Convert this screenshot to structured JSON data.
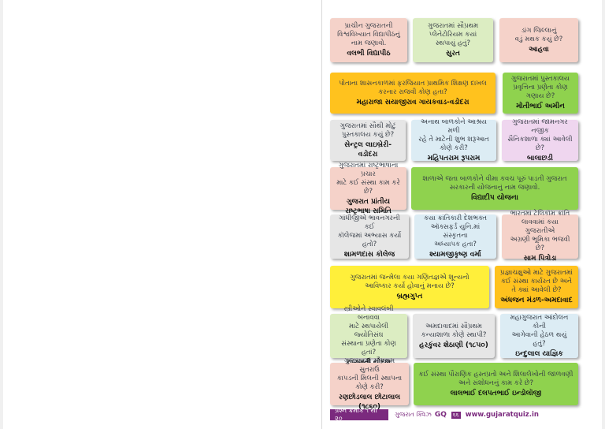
{
  "cards": [
    {
      "id": "r1c1",
      "question": "પ્રાચીન ગુજરાતની\nવિશ્વવિખ્યાત વિદ્યાપીઠનું\nનામ જણાવો.",
      "answer": "વલભી વિદ્યાપીઠ"
    },
    {
      "id": "r1c2",
      "question": "ગુજરાતમાં સૌપ્રથમ\nપ્લેનેટોરિયમ કયાં\nસ્થપાયું હતું?",
      "answer": "સુરત"
    },
    {
      "id": "r1c3",
      "question": "ડાંગ જિલ્લાનું\nવડું મથક કયું છે?",
      "answer": "આહવા"
    },
    {
      "id": "r2c1",
      "question": "પોતાના શાસનકાળમાં ફરજિયાત પ્રાથમિક શિક્ષણ દાખલ\nકરનાર રાજવી કોણ હતા?",
      "answer": "મહારાજા સયાજીરાવ ગાયકવાડ-વડોદરા"
    },
    {
      "id": "r2c2",
      "question": "ગુજરાતમાં પુસ્તકાલય\nપ્રવૃત્તિના પ્રણેતા કોણ\nગણાય છે?",
      "answer": "મોતીભાઈ અમીન"
    },
    {
      "id": "r3c1",
      "question": "ગુજરાતમાં સૌથી મોટું\nપુસ્તકાલય કયું છે?",
      "answer": "સેન્ટ્રલ લાઇબ્રેરી-વડોદરા"
    },
    {
      "id": "r3c2",
      "question": "અનાથ બાળકોને આશ્રય મળી\nરહે તે માટેની શુભ શરૂઆત\nકોણે કરી?",
      "answer": "મહિપતરામ રૂપરામ"
    },
    {
      "id": "r3c3",
      "question": "ગુજરાતમાં જામનગર નજીક\nસૈનિકશાળા ક્યાં આવેલી છે?",
      "answer": "બાલાછડી"
    },
    {
      "id": "r4c1",
      "question": "ગુજરાતમાં રાષ્ટ્રભાષાના પ્રચાર\nમાટે કઈ સંસ્થા કામ કરે છે?",
      "answer": "ગુજરાત પ્રાંતીય\nરાષ્ટ્રભાષા સમિતિ"
    },
    {
      "id": "r4c2",
      "question": "શાળાએ જતા બાળકોને વીમા કવચ પૂરું પાડતી ગુજરાત\nસરકારની યોજનાનું નામ જણાવો.",
      "answer": "વિદ્યાદીપ યોજના"
    },
    {
      "id": "r5c1",
      "question": "ગાંધીજીએ ભાવનગરની કઈ\nકૉલેજમાં અભ્યાસ કર્યો હતો?",
      "answer": "શામળદાસ કૉલેજ"
    },
    {
      "id": "r5c2",
      "question": "કયા ક્રાંતિકારી દેશભક્ત\nઑક્સફર્ડ યુનિ.માં સંસ્કૃતના\nઅધ્યાપક હતા?",
      "answer": "શ્યામજીકૃષ્ણ વર્મા"
    },
    {
      "id": "r5c3",
      "question": "ભારતમાં ટેલિકૉમ ક્રાંતિ\nલાવવામાં કયા ગુજરાતીએ\nઅગ્રણી ભૂમિકા ભજવી છે?",
      "answer": "સામ પિત્રોડા"
    },
    {
      "id": "r6c1",
      "question": "ગુજરાતમાં જન્મેલા કયા ગણિતજ્ઞએ શૂન્યનો\nઆવિષ્કાર કર્યો હોવાનું મનાય છે?",
      "answer": "બ્રહ્મગુપ્ત"
    },
    {
      "id": "r6c2",
      "question": "પ્રજ્ઞાચક્ષુઓ માટે ગુજરાતમાં\nકઈ સંસ્થા કાર્યરત છે અને\nતે ક્યાં આવેલી છે?",
      "answer": "અંધજન મંડળ-અમદાવાદ"
    },
    {
      "id": "r7c1",
      "question": "સ્ત્રીઓને સ્વાવલંબી બનાવવા\nમાટે સ્થપાયેલી જ્યોતિસંઘ\nસંસ્થાના પ્રણેતા કોણ હતાં?",
      "answer": "ચારુમતી યોદ્ધા"
    },
    {
      "id": "r7c2",
      "question": "અમદાવાદમાં સૌપ્રથમ\nકન્યાશાળા કોણે સ્થાપી?",
      "answer": "હરકુંવર શેઠાણી (૧૮૫૦)"
    },
    {
      "id": "r7c3",
      "question": "મહાગુજરાત આંદોલન કોની\nઆગેવાની હેઠળ થયું હતું?",
      "answer": "ઇન્દુલાલ યાજ્ઞિક"
    },
    {
      "id": "r8c1",
      "question": "ગુજરાતમાં સૌપ્રથમ સુતરાઉ\nકાપડની મિલની સ્થાપના\nકોણે કરી?",
      "answer": "રણછોડલાલ છોટાલાલ\n(૧૮૬૦)"
    },
    {
      "id": "r8c2",
      "question": "કઈ સંસ્થા પૌરાણિક હસ્તપ્રતો અને શિલાલેખોની જાળવણી\nઅને સંશોધનનું કામ કરે છે?",
      "answer": "લાલભાઈ દલપતભાઈ ઇન્ડોલૉજી"
    }
  ],
  "footer": {
    "range": "પ્રશ્ન ક્રમાંક ૧ થી ૨૦",
    "brand": "ગુજરાત ક્વિઝ",
    "gq": "GQ",
    "page": "૬૬",
    "url": "www.gujaratquiz.in"
  }
}
